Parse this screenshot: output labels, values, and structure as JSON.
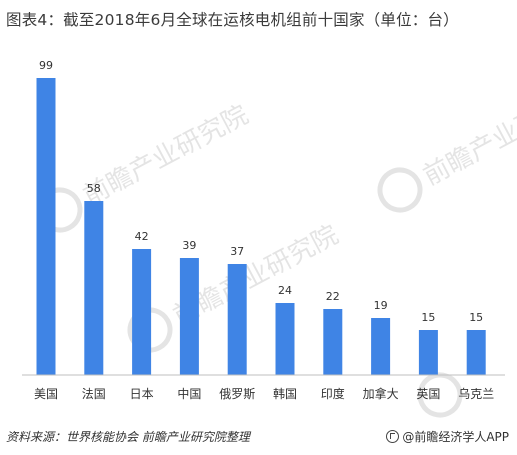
{
  "title": "图表4：截至2018年6月全球在运核电机组前十国家（单位：台）",
  "source": "资料来源：世界核能协会  前瞻产业研究院整理",
  "brand": "@前瞻经济学人APP",
  "watermark": "前瞻产业研究院",
  "colors": {
    "bar": "#3f84e5",
    "text": "#333333",
    "axis": "#bfbfbf"
  },
  "chart_data": {
    "type": "bar",
    "title": "图表4：截至2018年6月全球在运核电机组前十国家（单位：台）",
    "categories": [
      "美国",
      "法国",
      "日本",
      "中国",
      "俄罗斯",
      "韩国",
      "印度",
      "加拿大",
      "英国",
      "乌克兰"
    ],
    "values": [
      99,
      58,
      42,
      39,
      37,
      24,
      22,
      19,
      15,
      15
    ],
    "ylim": [
      0,
      99
    ],
    "grid": false,
    "legend": "none"
  }
}
